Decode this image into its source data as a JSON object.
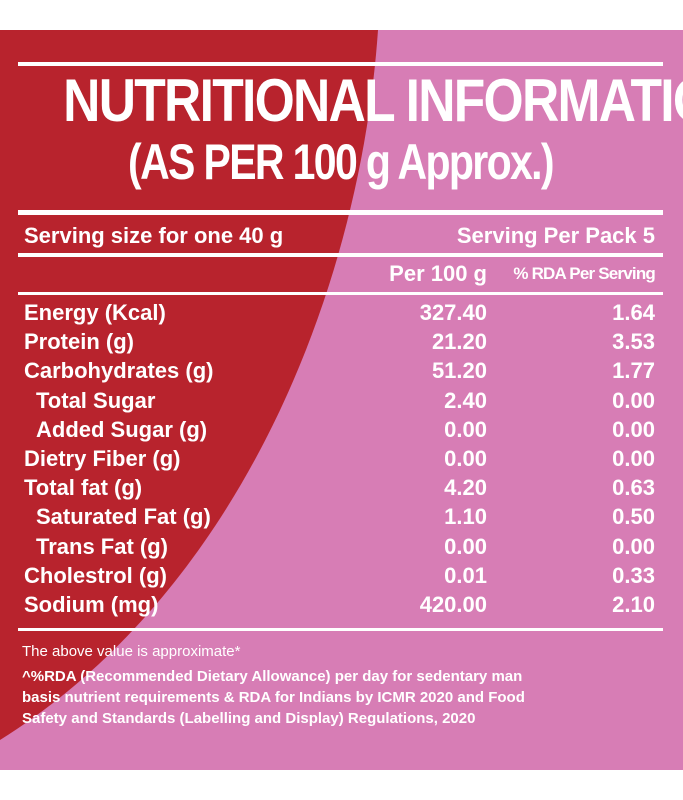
{
  "colors": {
    "red": "#b8232d",
    "pink": "#d77db5",
    "text": "#ffffff"
  },
  "title": {
    "line1": "NUTRITIONAL INFORMATION",
    "line2": "(AS PER 100 g Approx.)"
  },
  "serving": {
    "size": "Serving size for one 40 g",
    "per_pack": "Serving Per Pack 5"
  },
  "columns": {
    "per100": "Per 100 g",
    "rda": "% RDA Per Serving"
  },
  "rows": [
    {
      "label": "Energy (Kcal)",
      "per100": "327.40",
      "rda": "1.64"
    },
    {
      "label": "Protein (g)",
      "per100": "21.20",
      "rda": "3.53"
    },
    {
      "label": "Carbohydrates (g)",
      "per100": "51.20",
      "rda": "1.77"
    },
    {
      "label": "Total Sugar",
      "per100": "2.40",
      "rda": "0.00"
    },
    {
      "label": "Added Sugar (g)",
      "per100": "0.00",
      "rda": "0.00"
    },
    {
      "label": "Dietry Fiber (g)",
      "per100": "0.00",
      "rda": "0.00"
    },
    {
      "label": "Total fat (g)",
      "per100": "4.20",
      "rda": "0.63"
    },
    {
      "label": "Saturated Fat (g)",
      "per100": "1.10",
      "rda": "0.50"
    },
    {
      "label": "Trans Fat (g)",
      "per100": "0.00",
      "rda": "0.00"
    },
    {
      "label": "Cholestrol (g)",
      "per100": "0.01",
      "rda": "0.33"
    },
    {
      "label": "Sodium (mg)",
      "per100": "420.00",
      "rda": "2.10"
    }
  ],
  "footer": {
    "approx": "The above value is approximate*",
    "line1": "^%RDA (Recommended Dietary Allowance) per day for sedentary man",
    "line2": "basis nutrient requirements & RDA for Indians by ICMR 2020 and Food",
    "line3": "Safety and Standards (Labelling and Display) Regulations, 2020"
  }
}
